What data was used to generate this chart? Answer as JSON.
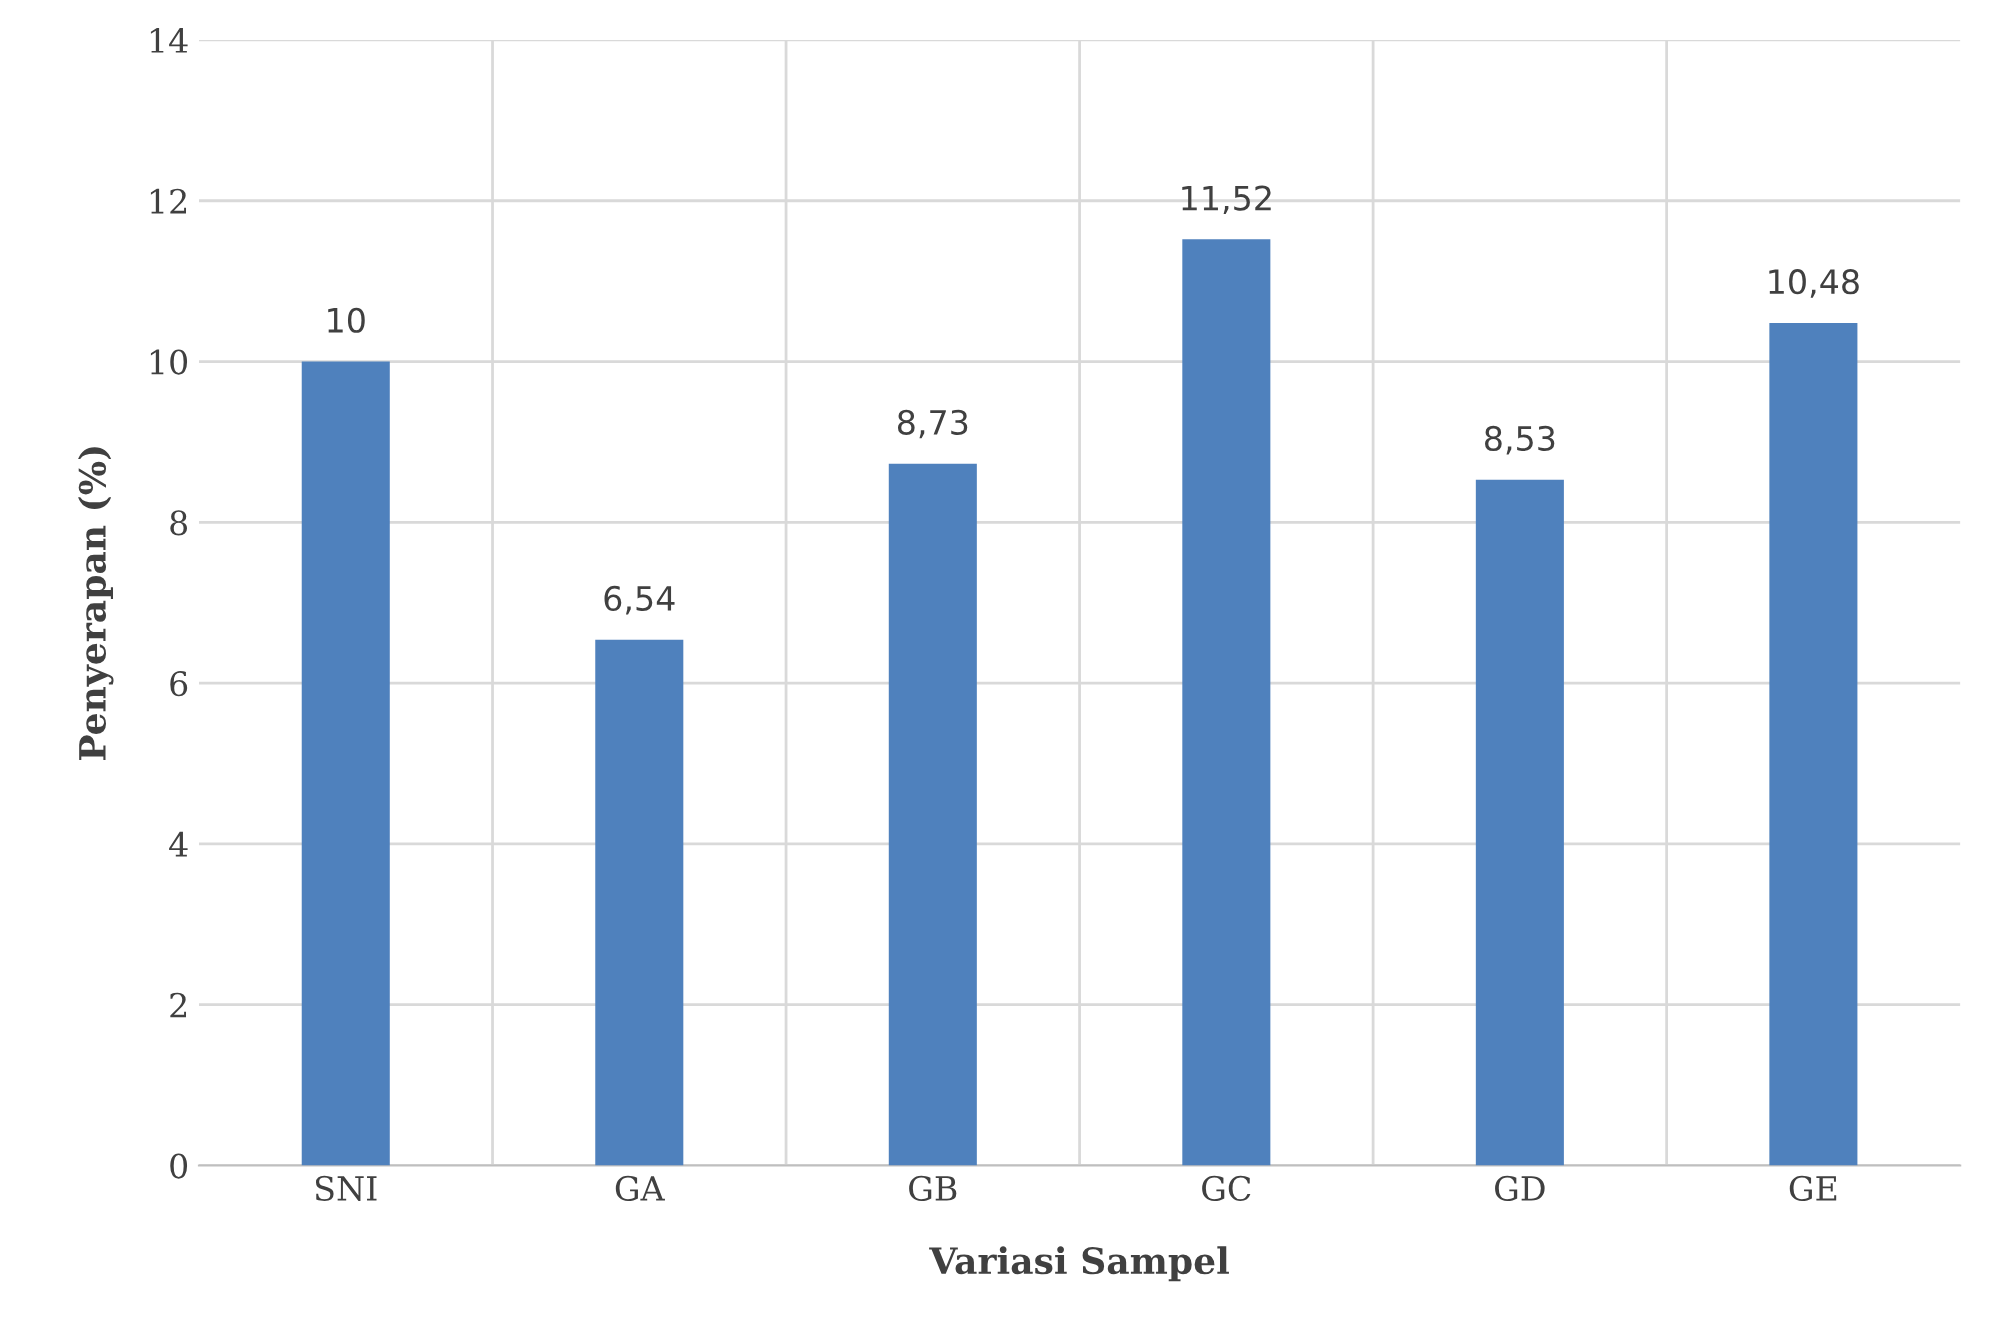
{
  "chart_data": {
    "type": "bar",
    "xlabel": "Variasi Sampel",
    "ylabel": "Penyerapan (%)",
    "categories": [
      "SNI",
      "GA",
      "GB",
      "GC",
      "GD",
      "GE"
    ],
    "values": [
      10,
      6.54,
      8.73,
      11.52,
      8.53,
      10.48
    ],
    "value_labels": [
      "10",
      "6,54",
      "8,73",
      "11,52",
      "8,53",
      "10,48"
    ],
    "color": "#4f81bd",
    "ylim": [
      0,
      14
    ],
    "yticks": [
      0,
      2,
      4,
      6,
      8,
      10,
      12,
      14
    ],
    "grid": true
  }
}
